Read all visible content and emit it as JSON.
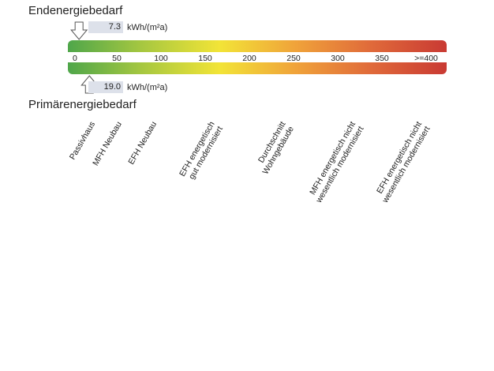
{
  "chart_data": {
    "type": "energy-scale",
    "title_top": "Endenergiebedarf",
    "title_bottom": "Primärenergiebedarf",
    "unit": "kWh/(m²a)",
    "endenergie_value": 7.3,
    "endenergie_label": "7.3",
    "primaerenergie_value": 19.0,
    "primaerenergie_label": "19.0",
    "range": [
      0,
      400
    ],
    "ticks": [
      {
        "value": 0,
        "label": "0"
      },
      {
        "value": 50,
        "label": "50"
      },
      {
        "value": 100,
        "label": "100"
      },
      {
        "value": 150,
        "label": "150"
      },
      {
        "value": 200,
        "label": "200"
      },
      {
        "value": 250,
        "label": "250"
      },
      {
        "value": 300,
        "label": "300"
      },
      {
        "value": 350,
        "label": "350"
      },
      {
        "value": 400,
        "label": ">=400"
      }
    ],
    "gradient_colors": [
      "#4fa64a",
      "#a8c840",
      "#f2e437",
      "#f0a33a",
      "#e06a3a",
      "#c93a33"
    ],
    "categories": [
      {
        "label": "Passivhaus",
        "value": 15
      },
      {
        "label": "MFH Neubau",
        "value": 45
      },
      {
        "label": "EFH Neubau",
        "value": 85
      },
      {
        "label": "EFH energetisch\ngut modernisiert",
        "value": 150
      },
      {
        "label": "Durchschnitt\nWohngebäude",
        "value": 230
      },
      {
        "label": "MFH energetisch nicht\nwesentlich modernisiert",
        "value": 310
      },
      {
        "label": "EFH energetisch nicht\nwesentlich modernisiert",
        "value": 385
      }
    ]
  }
}
